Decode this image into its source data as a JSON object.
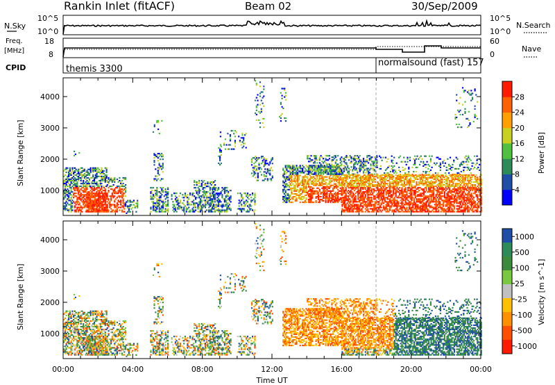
{
  "header": {
    "station": "Rankin Inlet (fitACF)",
    "beam": "Beam 02",
    "date": "30/Sep/2009"
  },
  "nsky_panel": {
    "left_label": "N.Sky",
    "right_label": "N.Search",
    "left_ticks": [
      "10^5",
      "10^0"
    ],
    "right_ticks": [
      "10^5",
      "10^0"
    ]
  },
  "freq_panel": {
    "left_label_1": "Freq.",
    "left_label_2": "[MHz]",
    "left_ticks": [
      "18",
      "8"
    ],
    "right_label": "Nave",
    "right_ticks": [
      "60",
      "0"
    ]
  },
  "cpid_panel": {
    "label": "CPID",
    "segments": [
      {
        "text": "themis 3300",
        "start_hour": 0,
        "end_hour": 18
      },
      {
        "text": "normalsound (fast) 157",
        "start_hour": 18,
        "end_hour": 24
      }
    ]
  },
  "colors": {
    "power_scale": [
      "#0000ff",
      "#1f4ea6",
      "#2f8a5a",
      "#50c040",
      "#c8d020",
      "#ffa000",
      "#ff6000",
      "#ff1a00"
    ],
    "velocity_scale": [
      "#1f4ea6",
      "#2f8a5a",
      "#3c8a3c",
      "#7ac840",
      "#c0c0c0",
      "#ffc000",
      "#ff9000",
      "#ff5000",
      "#ff1a00"
    ],
    "frame": "#000000",
    "divider": "#aaaaaa"
  },
  "chart_data": [
    {
      "type": "heatmap",
      "title": "Power",
      "xlabel": "",
      "ylabel": "Slant Range [km]",
      "ylim": [
        200,
        4600
      ],
      "xlim": [
        0,
        24
      ],
      "y_ticks": [
        "1000",
        "2000",
        "3000",
        "4000"
      ],
      "colorbar_label": "Power [dB]",
      "colorbar_ticks": [
        "4",
        "8",
        "12",
        "16",
        "20",
        "24",
        "28"
      ],
      "x_ticks": [
        "00:00",
        "04:00",
        "08:00",
        "12:00",
        "16:00",
        "20:00",
        "00:00"
      ]
    },
    {
      "type": "heatmap",
      "title": "Velocity",
      "xlabel": "Time UT",
      "ylabel": "Slant Range [km]",
      "ylim": [
        200,
        4600
      ],
      "xlim": [
        0,
        24
      ],
      "y_ticks": [
        "1000",
        "2000",
        "3000",
        "4000"
      ],
      "colorbar_label": "Velocity [m s^-1]",
      "colorbar_ticks": [
        "1000",
        "500",
        "100",
        "25",
        "-25",
        "-100",
        "-500",
        "-1000"
      ],
      "x_ticks": [
        "00:00",
        "04:00",
        "08:00",
        "12:00",
        "16:00",
        "20:00",
        "00:00"
      ]
    }
  ]
}
